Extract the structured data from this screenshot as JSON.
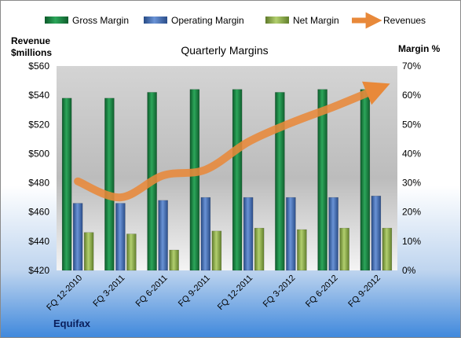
{
  "chart_data": {
    "type": "bar",
    "title": "Quarterly Margins",
    "company": "Equifax",
    "left_axis_label_line1": "Revenue",
    "left_axis_label_line2": "$millions",
    "right_axis_label": "Margin %",
    "categories": [
      "FQ 12-2010",
      "FQ 3-2011",
      "FQ 6-2011",
      "FQ 9-2011",
      "FQ 12-2011",
      "FQ 3-2012",
      "FQ 6-2012",
      "FQ 9-2012"
    ],
    "left_axis": {
      "min": 420,
      "max": 560,
      "step": 20,
      "prefix": "$",
      "ticks": [
        "$420",
        "$440",
        "$460",
        "$480",
        "$500",
        "$520",
        "$540",
        "$560"
      ]
    },
    "right_axis": {
      "min": 0,
      "max": 70,
      "step": 10,
      "suffix": "%",
      "ticks": [
        "0%",
        "10%",
        "20%",
        "30%",
        "40%",
        "50%",
        "60%",
        "70%"
      ]
    },
    "series": [
      {
        "name": "Gross Margin",
        "axis": "right",
        "kind": "bar",
        "color": "#1e8a46",
        "values": [
          59,
          59,
          61,
          62,
          62,
          61,
          62,
          62
        ]
      },
      {
        "name": "Operating Margin",
        "axis": "right",
        "kind": "bar",
        "color": "#4a72b8",
        "values": [
          23,
          23,
          24,
          25,
          25,
          25,
          25,
          25.5
        ]
      },
      {
        "name": "Net Margin",
        "axis": "right",
        "kind": "bar",
        "color": "#8fb050",
        "values": [
          13,
          12.5,
          7,
          13.5,
          14.5,
          14,
          14.5,
          14.5
        ]
      },
      {
        "name": "Revenues",
        "axis": "left",
        "kind": "line",
        "color": "#e8893a",
        "values": [
          481,
          470,
          485,
          489,
          508,
          521,
          532,
          544
        ]
      }
    ],
    "grid": false,
    "legend_position": "top"
  }
}
